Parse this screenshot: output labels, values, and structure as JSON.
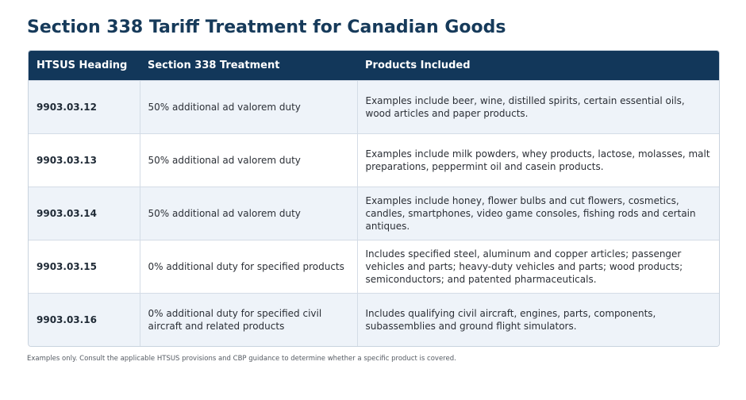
{
  "page": {
    "title": "Section 338 Tariff Treatment for Canadian Goods",
    "footnote": "Examples only. Consult the applicable HTSUS provisions and CBP guidance to determine whether a specific product is covered."
  },
  "table": {
    "columns": [
      "HTSUS Heading",
      "Section 338 Treatment",
      "Products Included"
    ],
    "rows": [
      {
        "heading": "9903.03.12",
        "treatment": "50% additional ad valorem duty",
        "products": "Examples include beer, wine, distilled spirits, certain essential oils, wood articles and paper products."
      },
      {
        "heading": "9903.03.13",
        "treatment": "50% additional ad valorem duty",
        "products": "Examples include milk powders, whey products, lactose, molasses, malt preparations, peppermint oil and casein products."
      },
      {
        "heading": "9903.03.14",
        "treatment": "50% additional ad valorem duty",
        "products": "Examples include honey, flower bulbs and cut flowers, cosmetics, candles, smartphones, video game consoles, fishing rods and certain antiques."
      },
      {
        "heading": "9903.03.15",
        "treatment": "0% additional duty for specified products",
        "products": "Includes specified steel, aluminum and copper articles; passenger vehicles and parts; heavy-duty vehicles and parts; wood products; semiconductors; and patented pharmaceuticals."
      },
      {
        "heading": "9903.03.16",
        "treatment": "0% additional duty for specified civil aircraft and related products",
        "products": "Includes qualifying civil aircraft, engines, parts, components, subassemblies and ground flight simulators."
      }
    ]
  },
  "colors": {
    "title": "#163a5a",
    "header_bg": "#12375a",
    "row_alt_bg": "#eef3f9",
    "border": "#d4dce6"
  }
}
